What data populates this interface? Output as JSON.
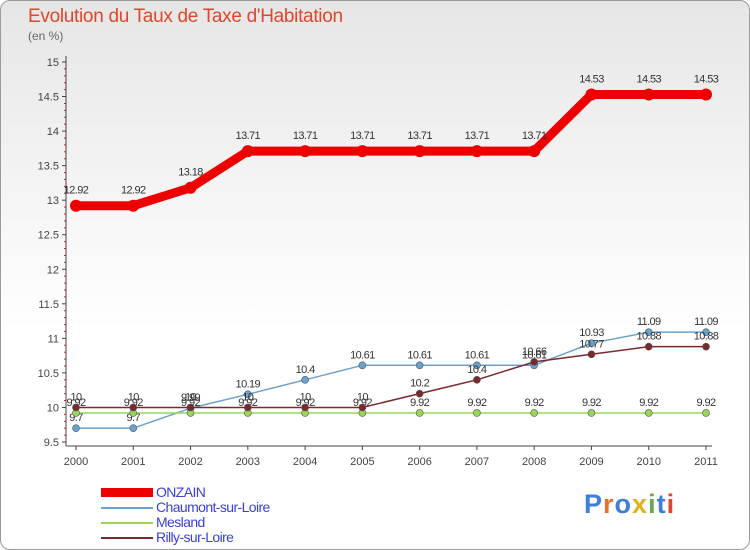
{
  "chart_data": {
    "type": "line",
    "title": "Evolution du Taux de Taxe d'Habitation",
    "subtitle": "(en %)",
    "x": [
      "2000",
      "2001",
      "2002",
      "2003",
      "2004",
      "2005",
      "2006",
      "2007",
      "2008",
      "2009",
      "2010",
      "2011"
    ],
    "ylim": [
      9.5,
      15
    ],
    "yticks": [
      "9.5",
      "10",
      "10.5",
      "11",
      "11.5",
      "12",
      "12.5",
      "13",
      "13.5",
      "14",
      "14.5",
      "15"
    ],
    "series": [
      {
        "name": "ONZAIN",
        "color": "#ee0000",
        "values": [
          12.92,
          12.92,
          13.18,
          13.71,
          13.71,
          13.71,
          13.71,
          13.71,
          13.71,
          14.53,
          14.53,
          14.53
        ],
        "labels": [
          "12.92",
          "12.92",
          "13.18",
          "13.71",
          "13.71",
          "13.71",
          "13.71",
          "13.71",
          "13.71",
          "14.53",
          "14.53",
          "14.53"
        ]
      },
      {
        "name": "Chaumont-sur-Loire",
        "color": "#6aa2cf",
        "values": [
          9.7,
          9.7,
          9.99,
          10.19,
          10.4,
          10.61,
          10.61,
          10.61,
          10.61,
          10.93,
          11.09,
          11.09
        ],
        "labels": [
          "9.7",
          "9.7",
          "9.99",
          "10.19",
          "10.4",
          "10.61",
          "10.61",
          "10.61",
          "10.61",
          "10.93",
          "11.09",
          "11.09"
        ]
      },
      {
        "name": "Mesland",
        "color": "#9ad55a",
        "values": [
          9.92,
          9.92,
          9.92,
          9.92,
          9.92,
          9.92,
          9.92,
          9.92,
          9.92,
          9.92,
          9.92,
          9.92
        ],
        "labels": [
          "9.92",
          "9.92",
          "9.92",
          "9.92",
          "9.92",
          "9.92",
          "9.92",
          "9.92",
          "9.92",
          "9.92",
          "9.92",
          "9.92"
        ]
      },
      {
        "name": "Rilly-sur-Loire",
        "color": "#7a2a2e",
        "values": [
          10,
          10,
          10,
          10,
          10,
          10,
          10.2,
          10.4,
          10.66,
          10.77,
          10.88,
          10.88
        ],
        "labels": [
          "10",
          "10",
          "10",
          "10",
          "10",
          "10",
          "10.2",
          "10.4",
          "10.66",
          "10.77",
          "10.88",
          "10.88"
        ]
      }
    ],
    "legend_position": "bottom-left"
  },
  "brand": {
    "letters": [
      "P",
      "r",
      "o",
      "x",
      "i",
      "t",
      "i"
    ],
    "colors": [
      "#3f7fd8",
      "#e8722a",
      "#3f7fd8",
      "#e0b21c",
      "#6aa84f",
      "#3f7fd8",
      "#e0462a"
    ]
  }
}
